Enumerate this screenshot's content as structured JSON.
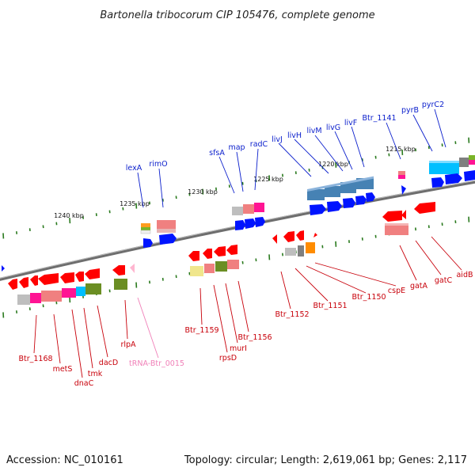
{
  "title": "Bartonella tribocorum CIP 105476, complete genome",
  "footer": {
    "accession": "Accession: NC_010161",
    "topology": "Topology: circular; Length: 2,619,061 bp; Genes: 2,117"
  },
  "ruler": [
    "1240 kbp",
    "1235 kbp",
    "1230 kbp",
    "1225 kbp",
    "1220 kbp",
    "1215 kbp"
  ],
  "colors": {
    "forward_label": "#0a1ecc",
    "reverse_label": "#c8000a",
    "rna_label": "#f080b8",
    "backbone": "#7a7a7a",
    "ticks": "#2a7a1e"
  },
  "genes": {
    "forward": [
      "lexA",
      "rimO",
      "sfsA",
      "map",
      "radC",
      "livJ",
      "livH",
      "livM",
      "livG",
      "livF",
      "Btr_1141",
      "pyrB",
      "pyrC2"
    ],
    "reverse": [
      "Btr_1168",
      "metS",
      "dnaC",
      "tmk",
      "dacD",
      "rlpA",
      "Btr_1159",
      "rpsD",
      "murI",
      "Btr_1156",
      "Btr_1152",
      "Btr_1151",
      "Btr_1150",
      "cspE",
      "gatA",
      "gatC",
      "aidB"
    ],
    "rna": [
      "tRNA-Btr_0015"
    ]
  }
}
